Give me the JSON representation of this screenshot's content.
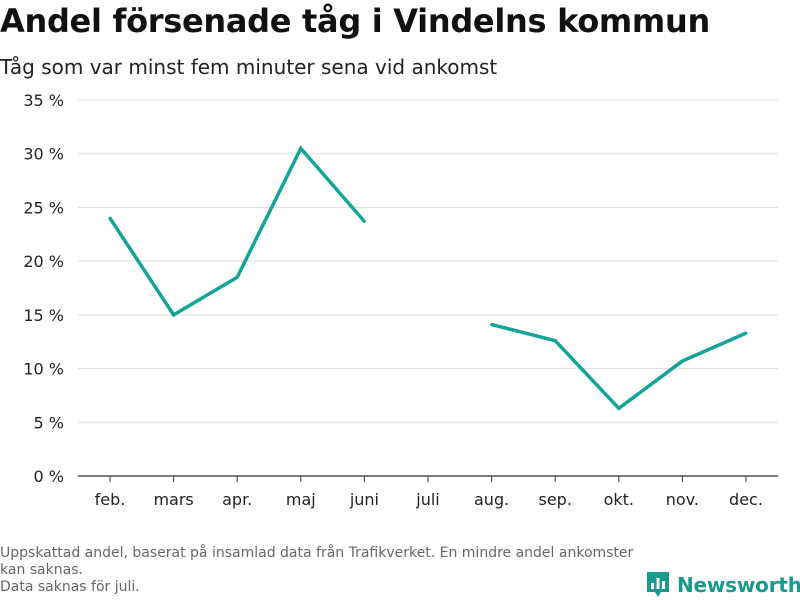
{
  "header": {
    "title": "Andel försenade tåg i Vindelns kommun",
    "subtitle": "Tåg som var minst fem minuter sena vid ankomst"
  },
  "footnote": {
    "lines": [
      "Uppskattad andel, baserat på insamlad data från Trafikverket. En mindre andel ankomster kan saknas.",
      "Data saknas för juli."
    ]
  },
  "brand": {
    "name": "Newsworthy",
    "icon": "bar-chart-icon",
    "color": "#1a9a8e"
  },
  "chart_data": {
    "type": "line",
    "title": "Andel försenade tåg i Vindelns kommun",
    "subtitle": "Tåg som var minst fem minuter sena vid ankomst",
    "categories": [
      "feb.",
      "mars",
      "apr.",
      "maj",
      "juni",
      "juli",
      "aug.",
      "sep.",
      "okt.",
      "nov.",
      "dec."
    ],
    "series": [
      {
        "values": [
          24.0,
          15.0,
          18.5,
          30.5,
          23.7,
          null,
          14.1,
          12.6,
          6.3,
          10.7,
          13.3
        ],
        "color": "#12a399"
      }
    ],
    "ylim": [
      0,
      35
    ],
    "yticks": [
      0,
      5,
      10,
      15,
      20,
      25,
      30,
      35
    ],
    "ytick_labels": [
      "0 %",
      "5 %",
      "10 %",
      "15 %",
      "20 %",
      "25 %",
      "30 %",
      "35 %"
    ],
    "xlabel": "",
    "ylabel": "",
    "grid": true,
    "legend": "none"
  }
}
